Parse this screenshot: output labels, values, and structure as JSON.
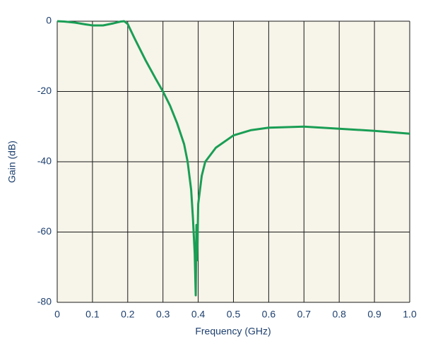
{
  "chart_data": {
    "type": "line",
    "x_label": "Frequency (GHz)",
    "y_label": "Gain (dB)",
    "xlim": [
      0,
      1
    ],
    "ylim": [
      -80,
      0
    ],
    "xticks": [
      0,
      0.1,
      0.2,
      0.3,
      0.4,
      0.5,
      0.6,
      0.7,
      0.8,
      0.9,
      {
        "value": 1,
        "label": "1.0"
      }
    ],
    "yticks": [
      0,
      -20,
      -40,
      -60,
      -80
    ],
    "grid": true,
    "background": "#f7f4e9",
    "series": [
      {
        "color": "#1a9e55",
        "x": [
          0,
          0.02,
          0.05,
          0.08,
          0.1,
          0.13,
          0.16,
          0.18,
          0.19,
          0.2,
          0.22,
          0.25,
          0.28,
          0.3,
          0.32,
          0.34,
          0.36,
          0.37,
          0.38,
          0.385,
          0.39,
          0.393,
          0.395,
          0.397,
          0.4,
          0.41,
          0.42,
          0.45,
          0.5,
          0.55,
          0.6,
          0.7,
          0.8,
          0.9,
          1
        ],
        "values": [
          0,
          -0.1,
          -0.4,
          -0.9,
          -1.2,
          -1.2,
          -0.6,
          -0.1,
          0,
          -0.8,
          -5,
          -11,
          -16.5,
          -20,
          -24,
          -29,
          -35,
          -40,
          -48,
          -56,
          -66,
          -78,
          -58,
          -68,
          -52,
          -44,
          -40,
          -36,
          -32.5,
          -31,
          -30.3,
          -30,
          -30.6,
          -31.2,
          -32
        ]
      }
    ]
  }
}
